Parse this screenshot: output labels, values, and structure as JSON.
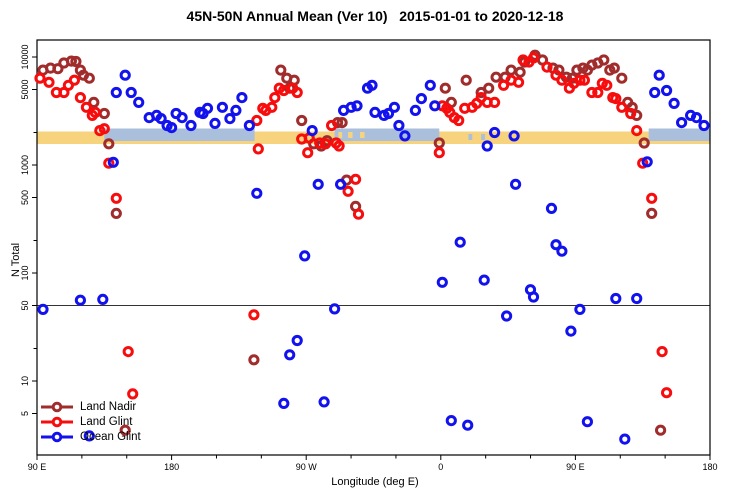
{
  "title": "45N-50N Annual Mean (Ver 10)   2015-01-01 to 2020-12-18",
  "chart_data": {
    "type": "scatter",
    "title": "45N-50N Annual Mean (Ver 10)   2015-01-01 to 2020-12-18",
    "xlabel": "Longitude (deg E)",
    "ylabel": "N Total",
    "x_axis": {
      "range_deg_east": [
        90,
        540
      ],
      "major_ticks": [
        {
          "lon": 90,
          "label": "90 E"
        },
        {
          "lon": 180,
          "label": "180"
        },
        {
          "lon": 270,
          "label": "90 W"
        },
        {
          "lon": 360,
          "label": "0"
        },
        {
          "lon": 450,
          "label": "90 E"
        },
        {
          "lon": 540,
          "label": "180"
        }
      ],
      "minor_ticks": [
        120,
        150,
        210,
        240,
        300,
        330,
        390,
        420,
        480,
        510
      ]
    },
    "y_axis": {
      "scale": "log",
      "labeled_ticks": [
        "10000",
        "5000",
        "1000",
        "500",
        "100",
        "50",
        "10",
        "5"
      ],
      "labeled_tick_values": [
        10000,
        5000,
        1000,
        500,
        100,
        50,
        10,
        5
      ],
      "minor_tick_values": [
        2000,
        200,
        20
      ],
      "approx_range": [
        2,
        14000
      ]
    },
    "reference_line_value": 50,
    "surface_band": {
      "description": "land(yellow)/ocean(blue) indicator band near N=2000",
      "land_color": "#f6d37c",
      "ocean_color": "#a9bfdc",
      "land_segments_lon": [
        [
          90,
          540
        ]
      ],
      "ocean_segments_lon": [
        [
          135,
          235.5
        ],
        [
          289,
          359
        ],
        [
          499,
          540
        ]
      ],
      "land_patches_lon": [
        [
          291.5,
          294
        ],
        [
          298,
          301
        ],
        [
          306,
          309
        ]
      ],
      "ocean_patches_lon": [
        [
          378.5,
          381
        ],
        [
          387,
          389.5
        ]
      ]
    },
    "series": [
      {
        "name": "Land Nadir",
        "color": "#a02c2c",
        "points": [
          [
            94,
            7560
          ],
          [
            99,
            7890
          ],
          [
            104,
            7800
          ],
          [
            108,
            8790
          ],
          [
            113,
            9170
          ],
          [
            116,
            9080
          ],
          [
            119,
            7560
          ],
          [
            121,
            6790
          ],
          [
            125,
            6360
          ],
          [
            128,
            3800
          ],
          [
            135,
            3000
          ],
          [
            138,
            1570
          ],
          [
            143,
            356
          ],
          [
            149,
            3.5
          ],
          [
            235,
            15.7
          ],
          [
            253,
            7560
          ],
          [
            257,
            6360
          ],
          [
            259,
            5140
          ],
          [
            262,
            6100
          ],
          [
            267,
            2580
          ],
          [
            275,
            1570
          ],
          [
            280,
            1500
          ],
          [
            284,
            1680
          ],
          [
            291,
            2470
          ],
          [
            294,
            2470
          ],
          [
            297,
            724
          ],
          [
            303,
            414
          ],
          [
            359,
            1600
          ],
          [
            363,
            5140
          ],
          [
            367,
            3800
          ],
          [
            377,
            6100
          ],
          [
            387,
            4690
          ],
          [
            392,
            5140
          ],
          [
            397,
            6500
          ],
          [
            403,
            6500
          ],
          [
            407,
            7560
          ],
          [
            413,
            7230
          ],
          [
            416,
            8980
          ],
          [
            423,
            10400
          ],
          [
            428,
            9380
          ],
          [
            435,
            7890
          ],
          [
            439,
            7560
          ],
          [
            444,
            6500
          ],
          [
            448,
            6360
          ],
          [
            451,
            7560
          ],
          [
            455,
            7890
          ],
          [
            458,
            7560
          ],
          [
            461,
            8420
          ],
          [
            465,
            8790
          ],
          [
            469,
            9380
          ],
          [
            473,
            7560
          ],
          [
            476,
            7890
          ],
          [
            481,
            6360
          ],
          [
            485,
            3800
          ],
          [
            488,
            3420
          ],
          [
            491,
            2880
          ],
          [
            496,
            1600
          ],
          [
            501,
            356
          ],
          [
            507,
            3.5
          ]
        ]
      },
      {
        "name": "Land Glint",
        "color": "#f70d0d",
        "points": [
          [
            92,
            6360
          ],
          [
            98,
            5830
          ],
          [
            103,
            4690
          ],
          [
            108,
            4690
          ],
          [
            111,
            5470
          ],
          [
            115,
            6100
          ],
          [
            119,
            4210
          ],
          [
            123,
            3420
          ],
          [
            127,
            2880
          ],
          [
            129,
            3070
          ],
          [
            132,
            2080
          ],
          [
            135,
            2170
          ],
          [
            138,
            1040
          ],
          [
            143,
            492
          ],
          [
            151,
            18.7
          ],
          [
            154,
            7.6
          ],
          [
            235,
            41
          ],
          [
            237,
            2580
          ],
          [
            238,
            1410
          ],
          [
            241,
            3350
          ],
          [
            243,
            3200
          ],
          [
            247,
            3420
          ],
          [
            249,
            4210
          ],
          [
            252,
            5140
          ],
          [
            255,
            4900
          ],
          [
            261,
            5140
          ],
          [
            264,
            4690
          ],
          [
            267,
            1740
          ],
          [
            271,
            1300
          ],
          [
            272,
            1780
          ],
          [
            279,
            1600
          ],
          [
            283,
            1570
          ],
          [
            287,
            2320
          ],
          [
            290,
            1600
          ],
          [
            292,
            1500
          ],
          [
            298,
            571
          ],
          [
            303,
            737
          ],
          [
            305,
            350
          ],
          [
            359,
            1300
          ],
          [
            361,
            3530
          ],
          [
            364,
            3350
          ],
          [
            366,
            3070
          ],
          [
            369,
            2750
          ],
          [
            372,
            2580
          ],
          [
            376,
            3350
          ],
          [
            381,
            3420
          ],
          [
            384,
            3720
          ],
          [
            387,
            4210
          ],
          [
            391,
            3800
          ],
          [
            396,
            3800
          ],
          [
            402,
            5470
          ],
          [
            407,
            6100
          ],
          [
            412,
            5830
          ],
          [
            415,
            9380
          ],
          [
            419,
            8980
          ],
          [
            422,
            9800
          ],
          [
            431,
            8060
          ],
          [
            437,
            6790
          ],
          [
            441,
            6100
          ],
          [
            446,
            5140
          ],
          [
            449,
            5710
          ],
          [
            453,
            6100
          ],
          [
            456,
            6100
          ],
          [
            461,
            4690
          ],
          [
            465,
            4690
          ],
          [
            468,
            5710
          ],
          [
            471,
            5470
          ],
          [
            475,
            4210
          ],
          [
            477,
            4120
          ],
          [
            481,
            3420
          ],
          [
            487,
            3000
          ],
          [
            491,
            2080
          ],
          [
            495,
            1040
          ],
          [
            501,
            492
          ],
          [
            508,
            18.7
          ],
          [
            511,
            7.8
          ]
        ]
      },
      {
        "name": "Ocean Glint",
        "color": "#1212ee",
        "points": [
          [
            94,
            46
          ],
          [
            119,
            56
          ],
          [
            125,
            3.1
          ],
          [
            134,
            57
          ],
          [
            141,
            1060
          ],
          [
            143,
            4690
          ],
          [
            149,
            6790
          ],
          [
            153,
            4690
          ],
          [
            158,
            3800
          ],
          [
            165,
            2750
          ],
          [
            170,
            2880
          ],
          [
            173,
            2690
          ],
          [
            177,
            2320
          ],
          [
            180,
            2220
          ],
          [
            183,
            3000
          ],
          [
            187,
            2750
          ],
          [
            193,
            2320
          ],
          [
            199,
            3070
          ],
          [
            201,
            3000
          ],
          [
            204,
            3350
          ],
          [
            209,
            2430
          ],
          [
            214,
            3420
          ],
          [
            219,
            2690
          ],
          [
            223,
            3200
          ],
          [
            227,
            4210
          ],
          [
            232,
            2320
          ],
          [
            237,
            547
          ],
          [
            255,
            6.2
          ],
          [
            259,
            17.5
          ],
          [
            264,
            23.7
          ],
          [
            269,
            144
          ],
          [
            274,
            2080
          ],
          [
            278,
            662
          ],
          [
            282,
            6.4
          ],
          [
            289,
            46.5
          ],
          [
            293,
            662
          ],
          [
            295,
            3200
          ],
          [
            300,
            3420
          ],
          [
            304,
            3530
          ],
          [
            311,
            5140
          ],
          [
            314,
            5470
          ],
          [
            316,
            3070
          ],
          [
            322,
            2880
          ],
          [
            325,
            3000
          ],
          [
            329,
            3420
          ],
          [
            332,
            2320
          ],
          [
            336,
            1860
          ],
          [
            343,
            3200
          ],
          [
            347,
            4120
          ],
          [
            353,
            5470
          ],
          [
            356,
            3530
          ],
          [
            361,
            82
          ],
          [
            367,
            4.3
          ],
          [
            373,
            193
          ],
          [
            378,
            3.9
          ],
          [
            389,
            86
          ],
          [
            391,
            1500
          ],
          [
            396,
            2000
          ],
          [
            404,
            40
          ],
          [
            409,
            1860
          ],
          [
            410,
            662
          ],
          [
            420,
            70
          ],
          [
            422,
            60
          ],
          [
            434,
            396
          ],
          [
            437,
            183
          ],
          [
            441,
            159
          ],
          [
            447,
            29
          ],
          [
            453,
            46
          ],
          [
            458,
            4.2
          ],
          [
            477,
            58
          ],
          [
            483,
            2.9
          ],
          [
            491,
            58
          ],
          [
            498,
            1070
          ],
          [
            503,
            4690
          ],
          [
            506,
            6790
          ],
          [
            511,
            4900
          ],
          [
            516,
            3720
          ],
          [
            521,
            2470
          ],
          [
            527,
            2880
          ],
          [
            531,
            2750
          ],
          [
            536,
            2320
          ]
        ]
      }
    ],
    "legend_position": "bottom-left"
  },
  "legend": {
    "items": [
      "Land Nadir",
      "Land Glint",
      "Ocean Glint"
    ]
  }
}
